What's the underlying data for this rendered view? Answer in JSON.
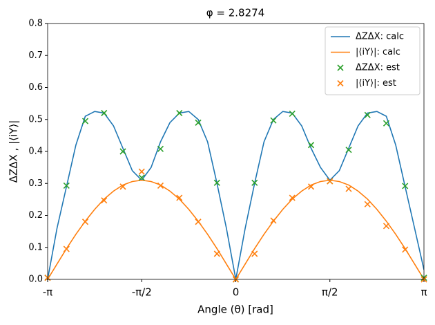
{
  "chart_data": {
    "type": "line",
    "title": "φ = 2.8274",
    "x_label": "Angle (θ) [rad]",
    "y_label": "ΔZΔX , |⟨iY⟩|",
    "xlim": [
      -3.1416,
      3.1416
    ],
    "xticks": [
      {
        "value": -3.1416,
        "label": "-π"
      },
      {
        "value": -1.5708,
        "label": "-π/2"
      },
      0,
      {
        "value": 1.5708,
        "label": "π/2"
      },
      {
        "value": 3.1416,
        "label": "π"
      }
    ],
    "ylim": [
      0,
      0.8
    ],
    "yticks": [
      {
        "value": 0,
        "label": "0.0"
      },
      0.1,
      0.2,
      0.3,
      0.4,
      0.5,
      0.6,
      0.7,
      0.8
    ],
    "legend": "upper right",
    "series": [
      {
        "name": "ΔZΔX: calc",
        "type": "line",
        "color": "#1f77b4",
        "x": [
          -3.142,
          -2.985,
          -2.827,
          -2.67,
          -2.513,
          -2.356,
          -2.199,
          -2.042,
          -1.885,
          -1.728,
          -1.571,
          -1.414,
          -1.257,
          -1.1,
          -0.942,
          -0.785,
          -0.628,
          -0.471,
          -0.314,
          -0.157,
          0,
          0.157,
          0.314,
          0.471,
          0.628,
          0.785,
          0.942,
          1.1,
          1.257,
          1.414,
          1.571,
          1.728,
          1.885,
          2.042,
          2.199,
          2.356,
          2.513,
          2.67,
          2.827,
          2.985,
          3.142
        ],
        "values": [
          0.0,
          0.16,
          0.29,
          0.42,
          0.51,
          0.525,
          0.52,
          0.48,
          0.41,
          0.34,
          0.31,
          0.35,
          0.43,
          0.49,
          0.52,
          0.525,
          0.5,
          0.43,
          0.3,
          0.16,
          0.0,
          0.16,
          0.3,
          0.43,
          0.5,
          0.525,
          0.52,
          0.48,
          0.41,
          0.35,
          0.31,
          0.34,
          0.41,
          0.48,
          0.52,
          0.525,
          0.51,
          0.42,
          0.29,
          0.16,
          0.03
        ]
      },
      {
        "name": "|⟨iY⟩|: calc",
        "type": "line",
        "color": "#ff7f0e",
        "x": [
          -3.142,
          -2.985,
          -2.827,
          -2.67,
          -2.513,
          -2.356,
          -2.199,
          -2.042,
          -1.885,
          -1.728,
          -1.571,
          -1.414,
          -1.257,
          -1.1,
          -0.942,
          -0.785,
          -0.628,
          -0.471,
          -0.314,
          -0.157,
          0,
          0.157,
          0.314,
          0.471,
          0.628,
          0.785,
          0.942,
          1.1,
          1.257,
          1.414,
          1.571,
          1.728,
          1.885,
          2.042,
          2.199,
          2.356,
          2.513,
          2.67,
          2.827,
          2.985,
          3.142
        ],
        "values": [
          0.0,
          0.048,
          0.096,
          0.141,
          0.182,
          0.219,
          0.251,
          0.276,
          0.295,
          0.306,
          0.31,
          0.306,
          0.295,
          0.276,
          0.251,
          0.219,
          0.182,
          0.141,
          0.096,
          0.048,
          0.0,
          0.048,
          0.096,
          0.141,
          0.182,
          0.219,
          0.251,
          0.276,
          0.295,
          0.306,
          0.31,
          0.306,
          0.295,
          0.276,
          0.251,
          0.219,
          0.182,
          0.141,
          0.096,
          0.048,
          0.0
        ]
      },
      {
        "name": "ΔZΔX: est",
        "type": "scatter",
        "color": "#2ca02c",
        "x": [
          -3.142,
          -2.827,
          -2.513,
          -2.199,
          -1.885,
          -1.571,
          -1.257,
          -0.942,
          -0.628,
          -0.314,
          0,
          0.314,
          0.628,
          0.942,
          1.257,
          1.571,
          1.885,
          2.199,
          2.513,
          2.827,
          3.142
        ],
        "values": [
          0.005,
          0.293,
          0.495,
          0.52,
          0.4,
          0.318,
          0.408,
          0.52,
          0.49,
          0.302,
          0.0,
          0.302,
          0.497,
          0.518,
          0.42,
          0.307,
          0.405,
          0.514,
          0.488,
          0.292,
          0.005
        ]
      },
      {
        "name": "|⟨iY⟩|: est",
        "type": "scatter",
        "color": "#ff7f0e",
        "x": [
          -3.142,
          -2.827,
          -2.513,
          -2.199,
          -1.885,
          -1.571,
          -1.257,
          -0.942,
          -0.628,
          -0.314,
          0,
          0.314,
          0.628,
          0.942,
          1.257,
          1.571,
          1.885,
          2.199,
          2.513,
          2.827,
          3.142
        ],
        "values": [
          0.005,
          0.095,
          0.18,
          0.247,
          0.29,
          0.337,
          0.293,
          0.255,
          0.18,
          0.08,
          0.0,
          0.08,
          0.184,
          0.255,
          0.29,
          0.307,
          0.283,
          0.235,
          0.167,
          0.093,
          0.0
        ]
      }
    ]
  }
}
